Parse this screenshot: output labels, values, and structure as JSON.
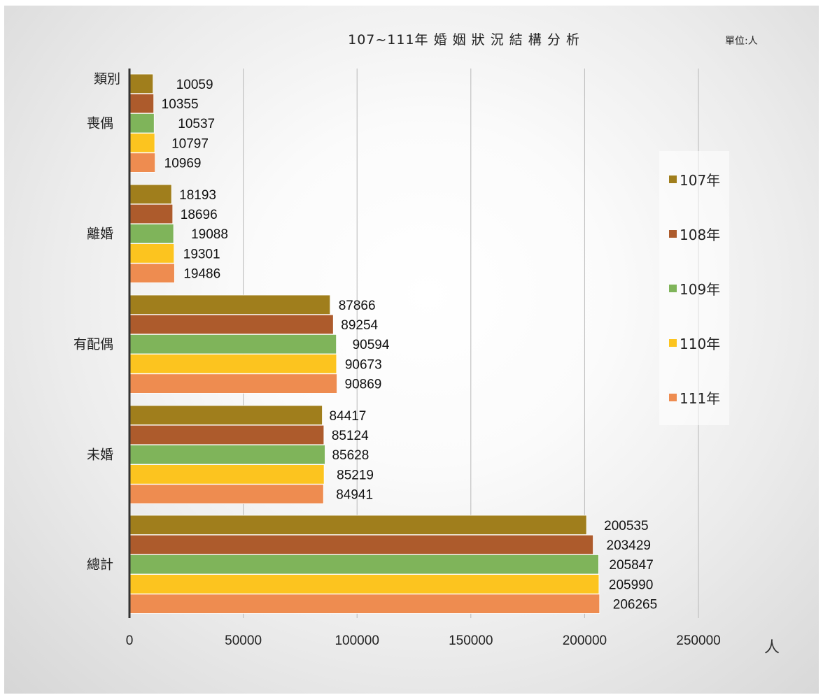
{
  "chart_data": {
    "type": "bar",
    "orientation": "horizontal",
    "title": "107~111年 婚 姻 狀 況 結 構 分 析",
    "unit_label": "單位:人",
    "xlabel": "人",
    "xlim": [
      0,
      250000
    ],
    "xticks": [
      "0",
      "50000",
      "100000",
      "150000",
      "200000",
      "250000"
    ],
    "header_category": "類別",
    "categories": [
      "喪偶",
      "離婚",
      "有配偶",
      "未婚",
      "總計"
    ],
    "series": [
      {
        "name": "107年",
        "color": "#a07e1c",
        "values": [
          10059,
          18193,
          87866,
          84417,
          200535
        ]
      },
      {
        "name": "108年",
        "color": "#ad5b2c",
        "values": [
          10355,
          18696,
          89254,
          85124,
          203429
        ]
      },
      {
        "name": "109年",
        "color": "#7fb45a",
        "values": [
          10537,
          19088,
          90594,
          85628,
          205847
        ]
      },
      {
        "name": "110年",
        "color": "#fcc41f",
        "values": [
          10797,
          19301,
          90673,
          85219,
          205990
        ]
      },
      {
        "name": "111年",
        "color": "#ee8c50",
        "values": [
          10969,
          19486,
          90869,
          84941,
          206265
        ]
      }
    ],
    "grid": true,
    "legend_position": "right"
  }
}
